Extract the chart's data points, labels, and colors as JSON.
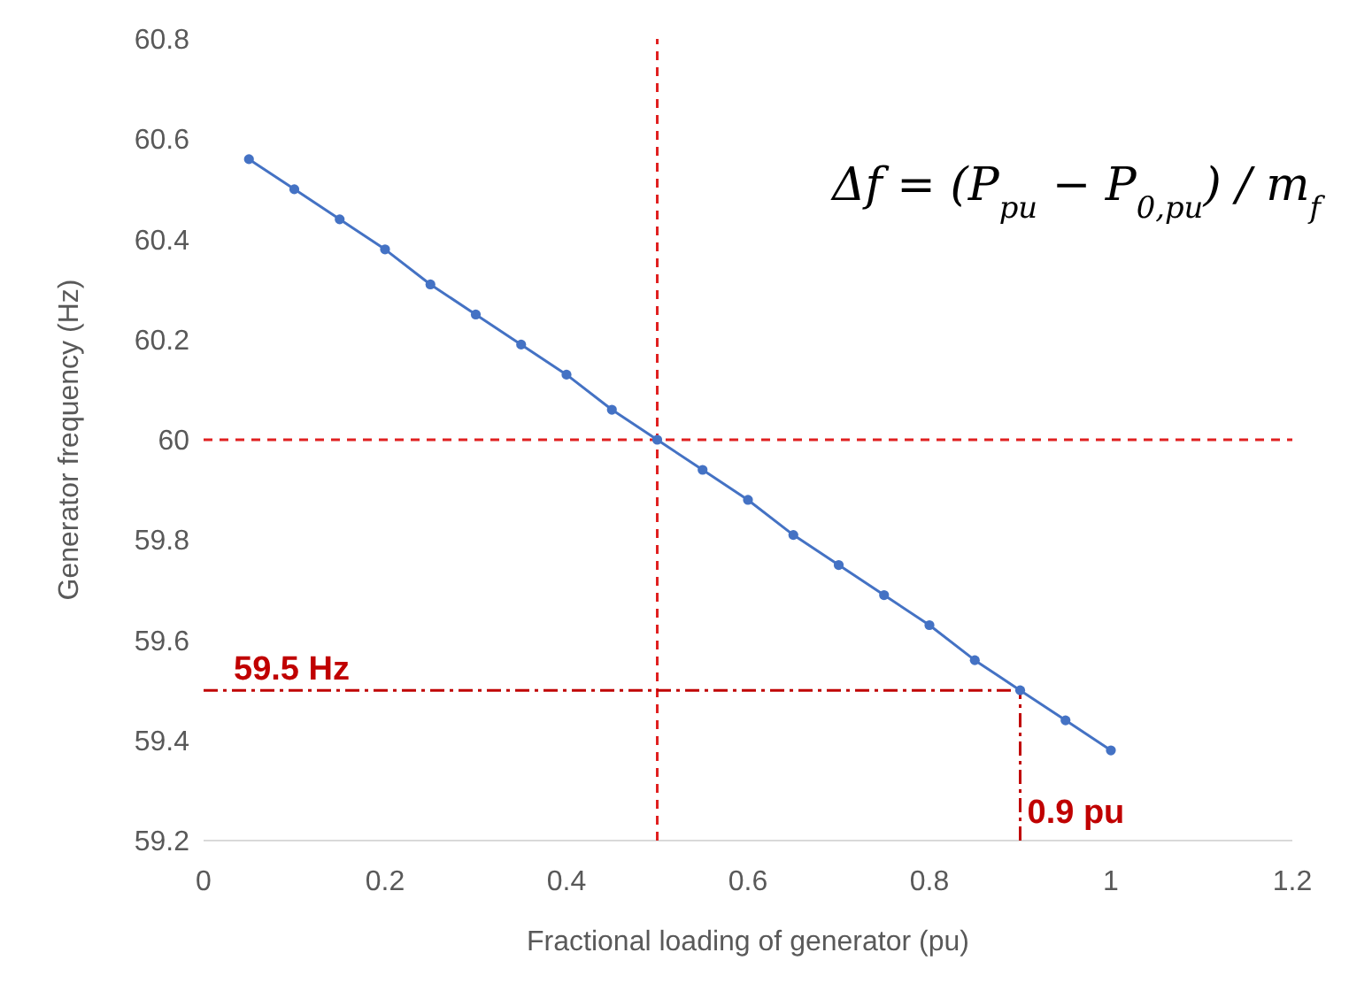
{
  "chart_data": {
    "type": "line",
    "xlabel": "Fractional loading of generator (pu)",
    "ylabel": "Generator frequency (Hz)",
    "x": [
      0.05,
      0.1,
      0.15,
      0.2,
      0.25,
      0.3,
      0.35,
      0.4,
      0.45,
      0.5,
      0.55,
      0.6,
      0.65,
      0.7,
      0.75,
      0.8,
      0.85,
      0.9,
      0.95,
      1
    ],
    "series": [
      {
        "color": "#4472c4",
        "values": [
          60.56,
          60.5,
          60.44,
          60.38,
          60.31,
          60.25,
          60.19,
          60.13,
          60.06,
          60,
          59.94,
          59.88,
          59.81,
          59.75,
          59.69,
          59.63,
          59.56,
          59.5,
          59.44,
          59.38
        ]
      }
    ],
    "xlim": [
      0,
      1.2
    ],
    "xticks": [
      0,
      0.2,
      0.4,
      0.6,
      0.8,
      1,
      1.2
    ],
    "ylim": [
      59.2,
      60.8
    ],
    "yticks": [
      59.2,
      59.4,
      59.6,
      59.8,
      60,
      60.2,
      60.4,
      60.6,
      60.8
    ],
    "grid": false,
    "marker": "circle",
    "line_style": "solid",
    "ref_lines": [
      {
        "axis": "x",
        "value": 0.5,
        "color": "#e02020",
        "line_style": "dashed"
      },
      {
        "axis": "y",
        "value": 60,
        "color": "#e02020",
        "line_style": "dashed"
      },
      {
        "axis": "y",
        "value": 59.5,
        "label": "59.5 Hz",
        "color": "#c00000",
        "line_style": "dashdot"
      },
      {
        "axis": "x",
        "value": 0.9,
        "label": "0.9 pu",
        "color": "#c00000",
        "line_style": "dashdot"
      }
    ],
    "annotations": [
      "Δf = (P$_{pu}$ − P$_{0,pu}$) / m$_{f}$"
    ]
  }
}
